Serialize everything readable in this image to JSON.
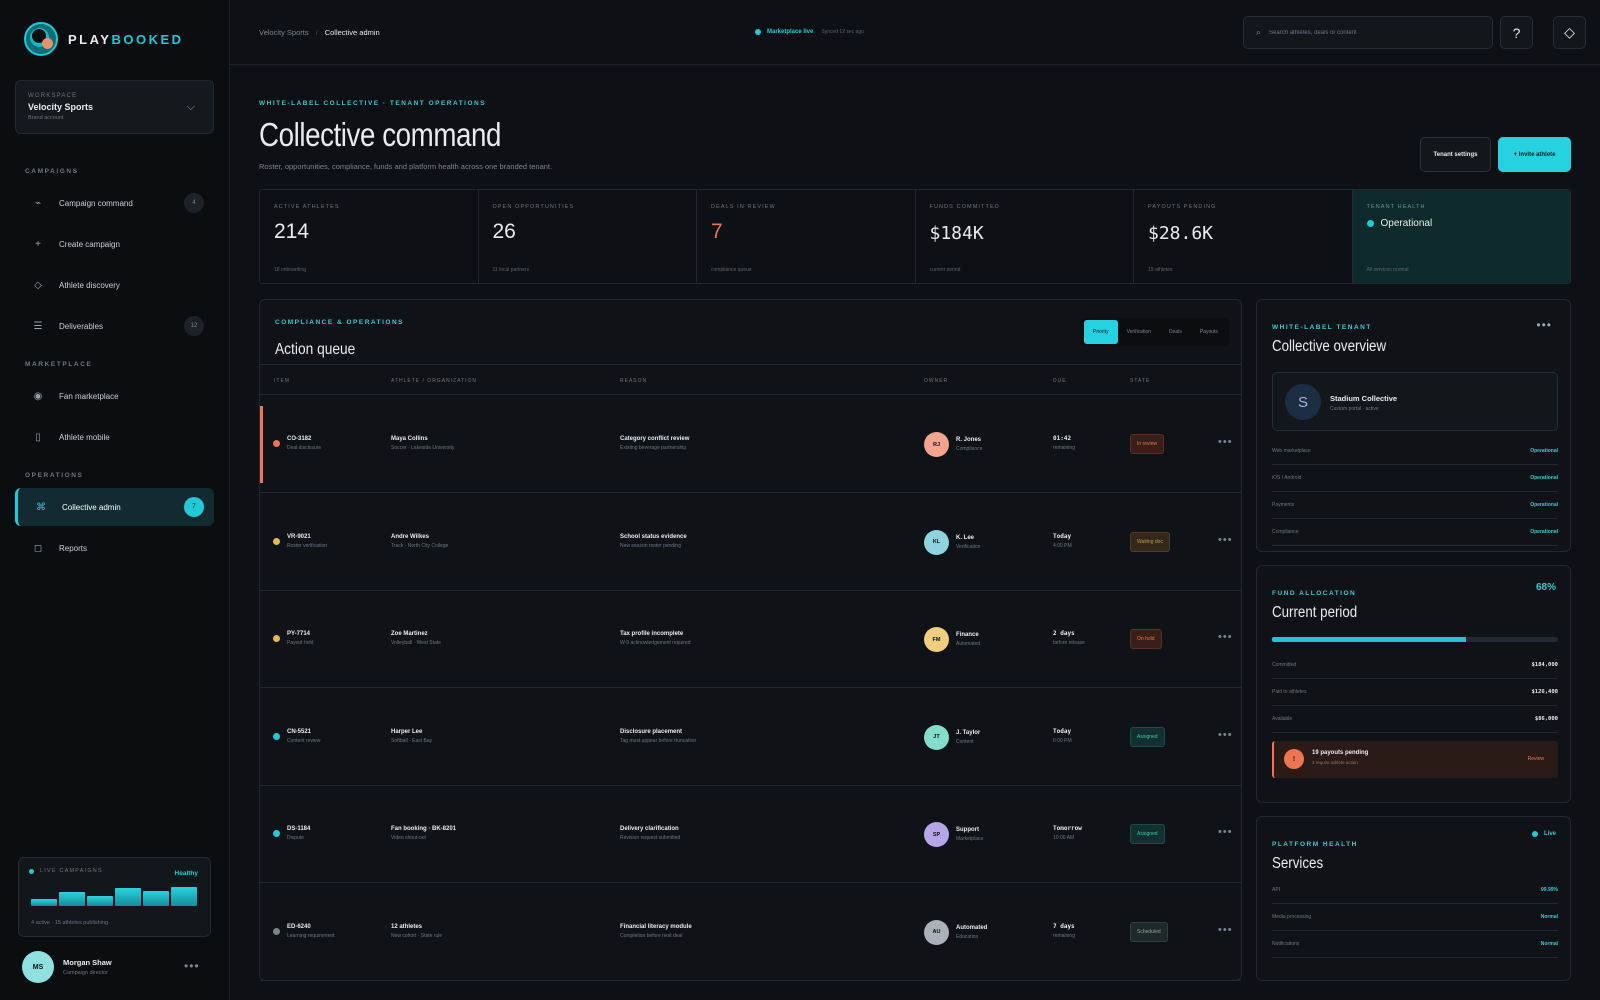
{
  "brand": {
    "name_a": "PLAY",
    "name_b": "BOOKED"
  },
  "workspace": {
    "label": "WORKSPACE",
    "name": "Velocity Sports",
    "sub": "Brand account"
  },
  "sidebar": {
    "campaigns_label": "CAMPAIGNS",
    "marketplace_label": "MARKETPLACE",
    "operations_label": "OPERATIONS",
    "items": [
      {
        "label": "Campaign command",
        "icon": "pulse-icon",
        "count": "4"
      },
      {
        "label": "Create campaign",
        "icon": "plus-icon"
      },
      {
        "label": "Athlete discovery",
        "icon": "diamond-icon"
      },
      {
        "label": "Deliverables",
        "icon": "list-icon",
        "count": "12"
      },
      {
        "label": "Fan marketplace",
        "icon": "target-icon"
      },
      {
        "label": "Athlete mobile",
        "icon": "phone-icon"
      },
      {
        "label": "Collective admin",
        "icon": "command-icon",
        "count": "7"
      },
      {
        "label": "Reports",
        "icon": "square-icon"
      }
    ]
  },
  "live_campaigns": {
    "label": "LIVE CAMPAIGNS",
    "status": "Healthy",
    "bars": [
      0.35,
      0.7,
      0.5,
      0.9,
      0.75,
      0.95
    ],
    "footer": "4 active · 15 athletes publishing"
  },
  "user": {
    "initials": "MS",
    "name": "Morgan Shaw",
    "role": "Campaign director"
  },
  "topbar": {
    "crumb_root": "Velocity Sports",
    "crumb_current": "Collective admin",
    "marketplace_status": "Marketplace live",
    "synced": "Synced 12 sec ago",
    "search_placeholder": "Search athletes, deals or content",
    "help_label": "?",
    "mode_label": "◇"
  },
  "header": {
    "eyebrow": "WHITE-LABEL COLLECTIVE · TENANT OPERATIONS",
    "title": "Collective command",
    "subtitle": "Roster, opportunities, compliance, funds and platform health across one branded tenant.",
    "settings_label": "Tenant settings",
    "invite_label": "+ Invite athlete"
  },
  "stats": [
    {
      "label": "ACTIVE ATHLETES",
      "value": "214",
      "foot": "18 onboarding"
    },
    {
      "label": "OPEN OPPORTUNITIES",
      "value": "26",
      "foot": "11 local partners"
    },
    {
      "label": "DEALS IN REVIEW",
      "value": "7",
      "foot": "compliance queue"
    },
    {
      "label": "FUNDS COMMITTED",
      "value": "$184K",
      "foot": "current period"
    },
    {
      "label": "PAYOUTS PENDING",
      "value": "$28.6K",
      "foot": "19 athletes"
    },
    {
      "label": "TENANT HEALTH",
      "value": "Operational",
      "foot": "All services normal"
    }
  ],
  "queue": {
    "eyebrow": "COMPLIANCE & OPERATIONS",
    "title": "Action queue",
    "tabs": [
      "Priority",
      "Verification",
      "Deals",
      "Payouts"
    ],
    "columns": [
      "ITEM",
      "ATHLETE / ORGANIZATION",
      "REASON",
      "OWNER",
      "DUE",
      "STATE"
    ],
    "rows": [
      {
        "id": "CO-3182",
        "type": "Deal disclosure",
        "athlete": "Maya Collins",
        "org": "Soccer · Lakeside University",
        "reason": "Category conflict review",
        "reason_sub": "Existing beverage partnership",
        "owner_initials": "RJ",
        "owner": "R. Jones",
        "team": "Compliance",
        "due": "01:42",
        "due_sub": "remaining",
        "state": "In review",
        "dot": "#ef7452",
        "avatar": "#f2a48f",
        "badge_bg": "#3a1f18",
        "badge_fg": "#ef7452"
      },
      {
        "id": "VR-9021",
        "type": "Roster verification",
        "athlete": "Andre Wilkes",
        "org": "Track · North City College",
        "reason": "School status evidence",
        "reason_sub": "New season roster pending",
        "owner_initials": "KL",
        "owner": "K. Lee",
        "team": "Verification",
        "due": "Today",
        "due_sub": "4:00 PM",
        "state": "Waiting doc",
        "dot": "#e9b949",
        "avatar": "#8fd4dc",
        "badge_bg": "#33291a",
        "badge_fg": "#c89a48"
      },
      {
        "id": "PY-7714",
        "type": "Payout hold",
        "athlete": "Zoe Martinez",
        "org": "Volleyball · West State",
        "reason": "Tax profile incomplete",
        "reason_sub": "W-9 acknowledgement required",
        "owner_initials": "FM",
        "owner": "Finance",
        "team": "Automated",
        "due": "2 days",
        "due_sub": "before release",
        "state": "On hold",
        "dot": "#e9b949",
        "avatar": "#efcf7f",
        "badge_bg": "#3a1f18",
        "badge_fg": "#ef7452"
      },
      {
        "id": "CN-5521",
        "type": "Content review",
        "athlete": "Harper Lee",
        "org": "Softball · East Bay",
        "reason": "Disclosure placement",
        "reason_sub": "Tag must appear before truncation",
        "owner_initials": "JT",
        "owner": "J. Taylor",
        "team": "Content",
        "due": "Today",
        "due_sub": "6:00 PM",
        "state": "Assigned",
        "dot": "#22c9d6",
        "avatar": "#86dccb",
        "badge_bg": "#12302f",
        "badge_fg": "#3cc7a8"
      },
      {
        "id": "DS-1184",
        "type": "Dispute",
        "athlete": "Fan booking · BK-8201",
        "org": "Video shout-out",
        "reason": "Delivery clarification",
        "reason_sub": "Revision request submitted",
        "owner_initials": "SP",
        "owner": "Support",
        "team": "Marketplace",
        "due": "Tomorrow",
        "due_sub": "10:00 AM",
        "state": "Assigned",
        "dot": "#22c9d6",
        "avatar": "#b6a6e8",
        "badge_bg": "#12302f",
        "badge_fg": "#3cc7a8"
      },
      {
        "id": "ED-6240",
        "type": "Learning requirement",
        "athlete": "12 athletes",
        "org": "New cohort · State rule",
        "reason": "Financial literacy module",
        "reason_sub": "Completion before next deal",
        "owner_initials": "AU",
        "owner": "Automated",
        "team": "Education",
        "due": "7 days",
        "due_sub": "remaining",
        "state": "Scheduled",
        "dot": "#7a858d",
        "avatar": "#a9b2b8",
        "badge_bg": "#1d2a29",
        "badge_fg": "#8aa3a0"
      }
    ]
  },
  "overview": {
    "eyebrow": "WHITE-LABEL TENANT",
    "title": "Collective overview",
    "org_initial": "S",
    "org_name": "Stadium Collective",
    "org_sub": "Custom portal · active",
    "items": [
      {
        "k": "Web marketplace",
        "v": "Operational"
      },
      {
        "k": "iOS / Android",
        "v": "Operational"
      },
      {
        "k": "Payments",
        "v": "Operational"
      },
      {
        "k": "Compliance",
        "v": "Operational"
      }
    ]
  },
  "funds": {
    "eyebrow": "FUND ALLOCATION",
    "title": "Current period",
    "pct": "68%",
    "progress": 0.68,
    "items": [
      {
        "k": "Committed",
        "v": "$184,000"
      },
      {
        "k": "Paid to athletes",
        "v": "$126,400"
      },
      {
        "k": "Available",
        "v": "$86,000"
      }
    ],
    "pending_icon": "!",
    "pending_title": "19 payouts pending",
    "pending_sub": "3 require athlete action",
    "pending_action": "Review"
  },
  "health": {
    "eyebrow": "PLATFORM HEALTH",
    "title": "Services",
    "status": "Live",
    "items": [
      {
        "k": "API",
        "v": "99.99%"
      },
      {
        "k": "Media processing",
        "v": "Normal"
      },
      {
        "k": "Notifications",
        "v": "Normal"
      }
    ]
  }
}
